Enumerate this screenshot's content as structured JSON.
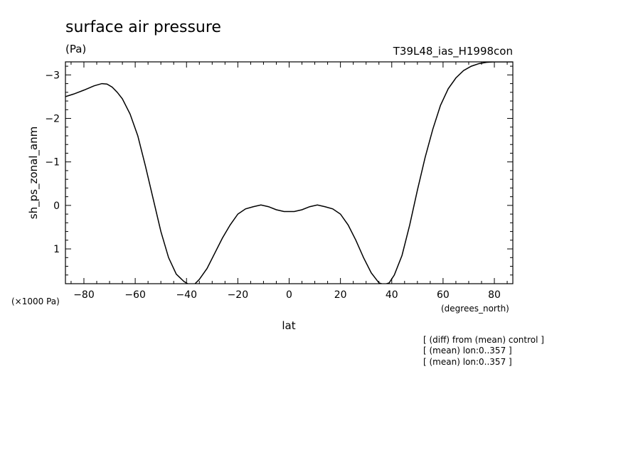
{
  "chart_data": {
    "type": "line",
    "title": "surface air pressure",
    "units": "(Pa)",
    "run_label": "T39L48_ias_H1998con",
    "xlabel": "lat",
    "xunits": "(degrees_north)",
    "ylabel": "sh_ps_zonal_anm",
    "yscale_label": "(×1000 Pa)",
    "notes": [
      "[ (diff) from (mean) control ]",
      "[ (mean) lon:0..357 ]",
      "[ (mean) lon:0..357 ]"
    ],
    "xlim": [
      -87.2,
      87.2
    ],
    "ylim": [
      1.8,
      -3.3
    ],
    "y_inverted": true,
    "xticks": [
      -80,
      -60,
      -40,
      -20,
      0,
      20,
      40,
      60,
      80
    ],
    "yticks": [
      -3,
      -2,
      -1,
      0,
      1
    ],
    "ytick_labels": [
      "−3",
      "−2",
      "−1",
      "0",
      "1"
    ],
    "xtick_labels": [
      "−80",
      "−60",
      "−40",
      "−20",
      "0",
      "20",
      "40",
      "60",
      "80"
    ],
    "grid": false,
    "series": [
      {
        "x": [
          -87.2,
          -84,
          -80,
          -76,
          -73,
          -71,
          -69,
          -67,
          -65,
          -62,
          -59,
          -56,
          -53,
          -50,
          -47,
          -44,
          -41,
          -39,
          -37,
          -35,
          -32,
          -29,
          -26,
          -23,
          -20,
          -17,
          -14,
          -11,
          -8,
          -5,
          -2,
          0,
          2,
          5,
          8,
          11,
          14,
          17,
          20,
          23,
          26,
          29,
          32,
          35,
          37,
          39,
          41,
          44,
          47,
          50,
          53,
          56,
          59,
          62,
          65,
          68,
          71,
          74,
          77,
          80,
          83,
          86,
          87.2
        ],
        "y": [
          -2.5,
          -2.56,
          -2.65,
          -2.75,
          -2.8,
          -2.79,
          -2.72,
          -2.6,
          -2.45,
          -2.1,
          -1.6,
          -0.9,
          -0.15,
          0.6,
          1.2,
          1.58,
          1.75,
          1.82,
          1.82,
          1.7,
          1.45,
          1.1,
          0.75,
          0.45,
          0.2,
          0.08,
          0.03,
          -0.01,
          0.03,
          0.1,
          0.14,
          0.14,
          0.14,
          0.1,
          0.03,
          -0.01,
          0.03,
          0.08,
          0.2,
          0.45,
          0.8,
          1.2,
          1.55,
          1.78,
          1.82,
          1.78,
          1.6,
          1.15,
          0.45,
          -0.35,
          -1.1,
          -1.75,
          -2.3,
          -2.68,
          -2.93,
          -3.1,
          -3.2,
          -3.26,
          -3.29,
          -3.3,
          -3.3,
          -3.3,
          -3.3
        ]
      }
    ]
  }
}
